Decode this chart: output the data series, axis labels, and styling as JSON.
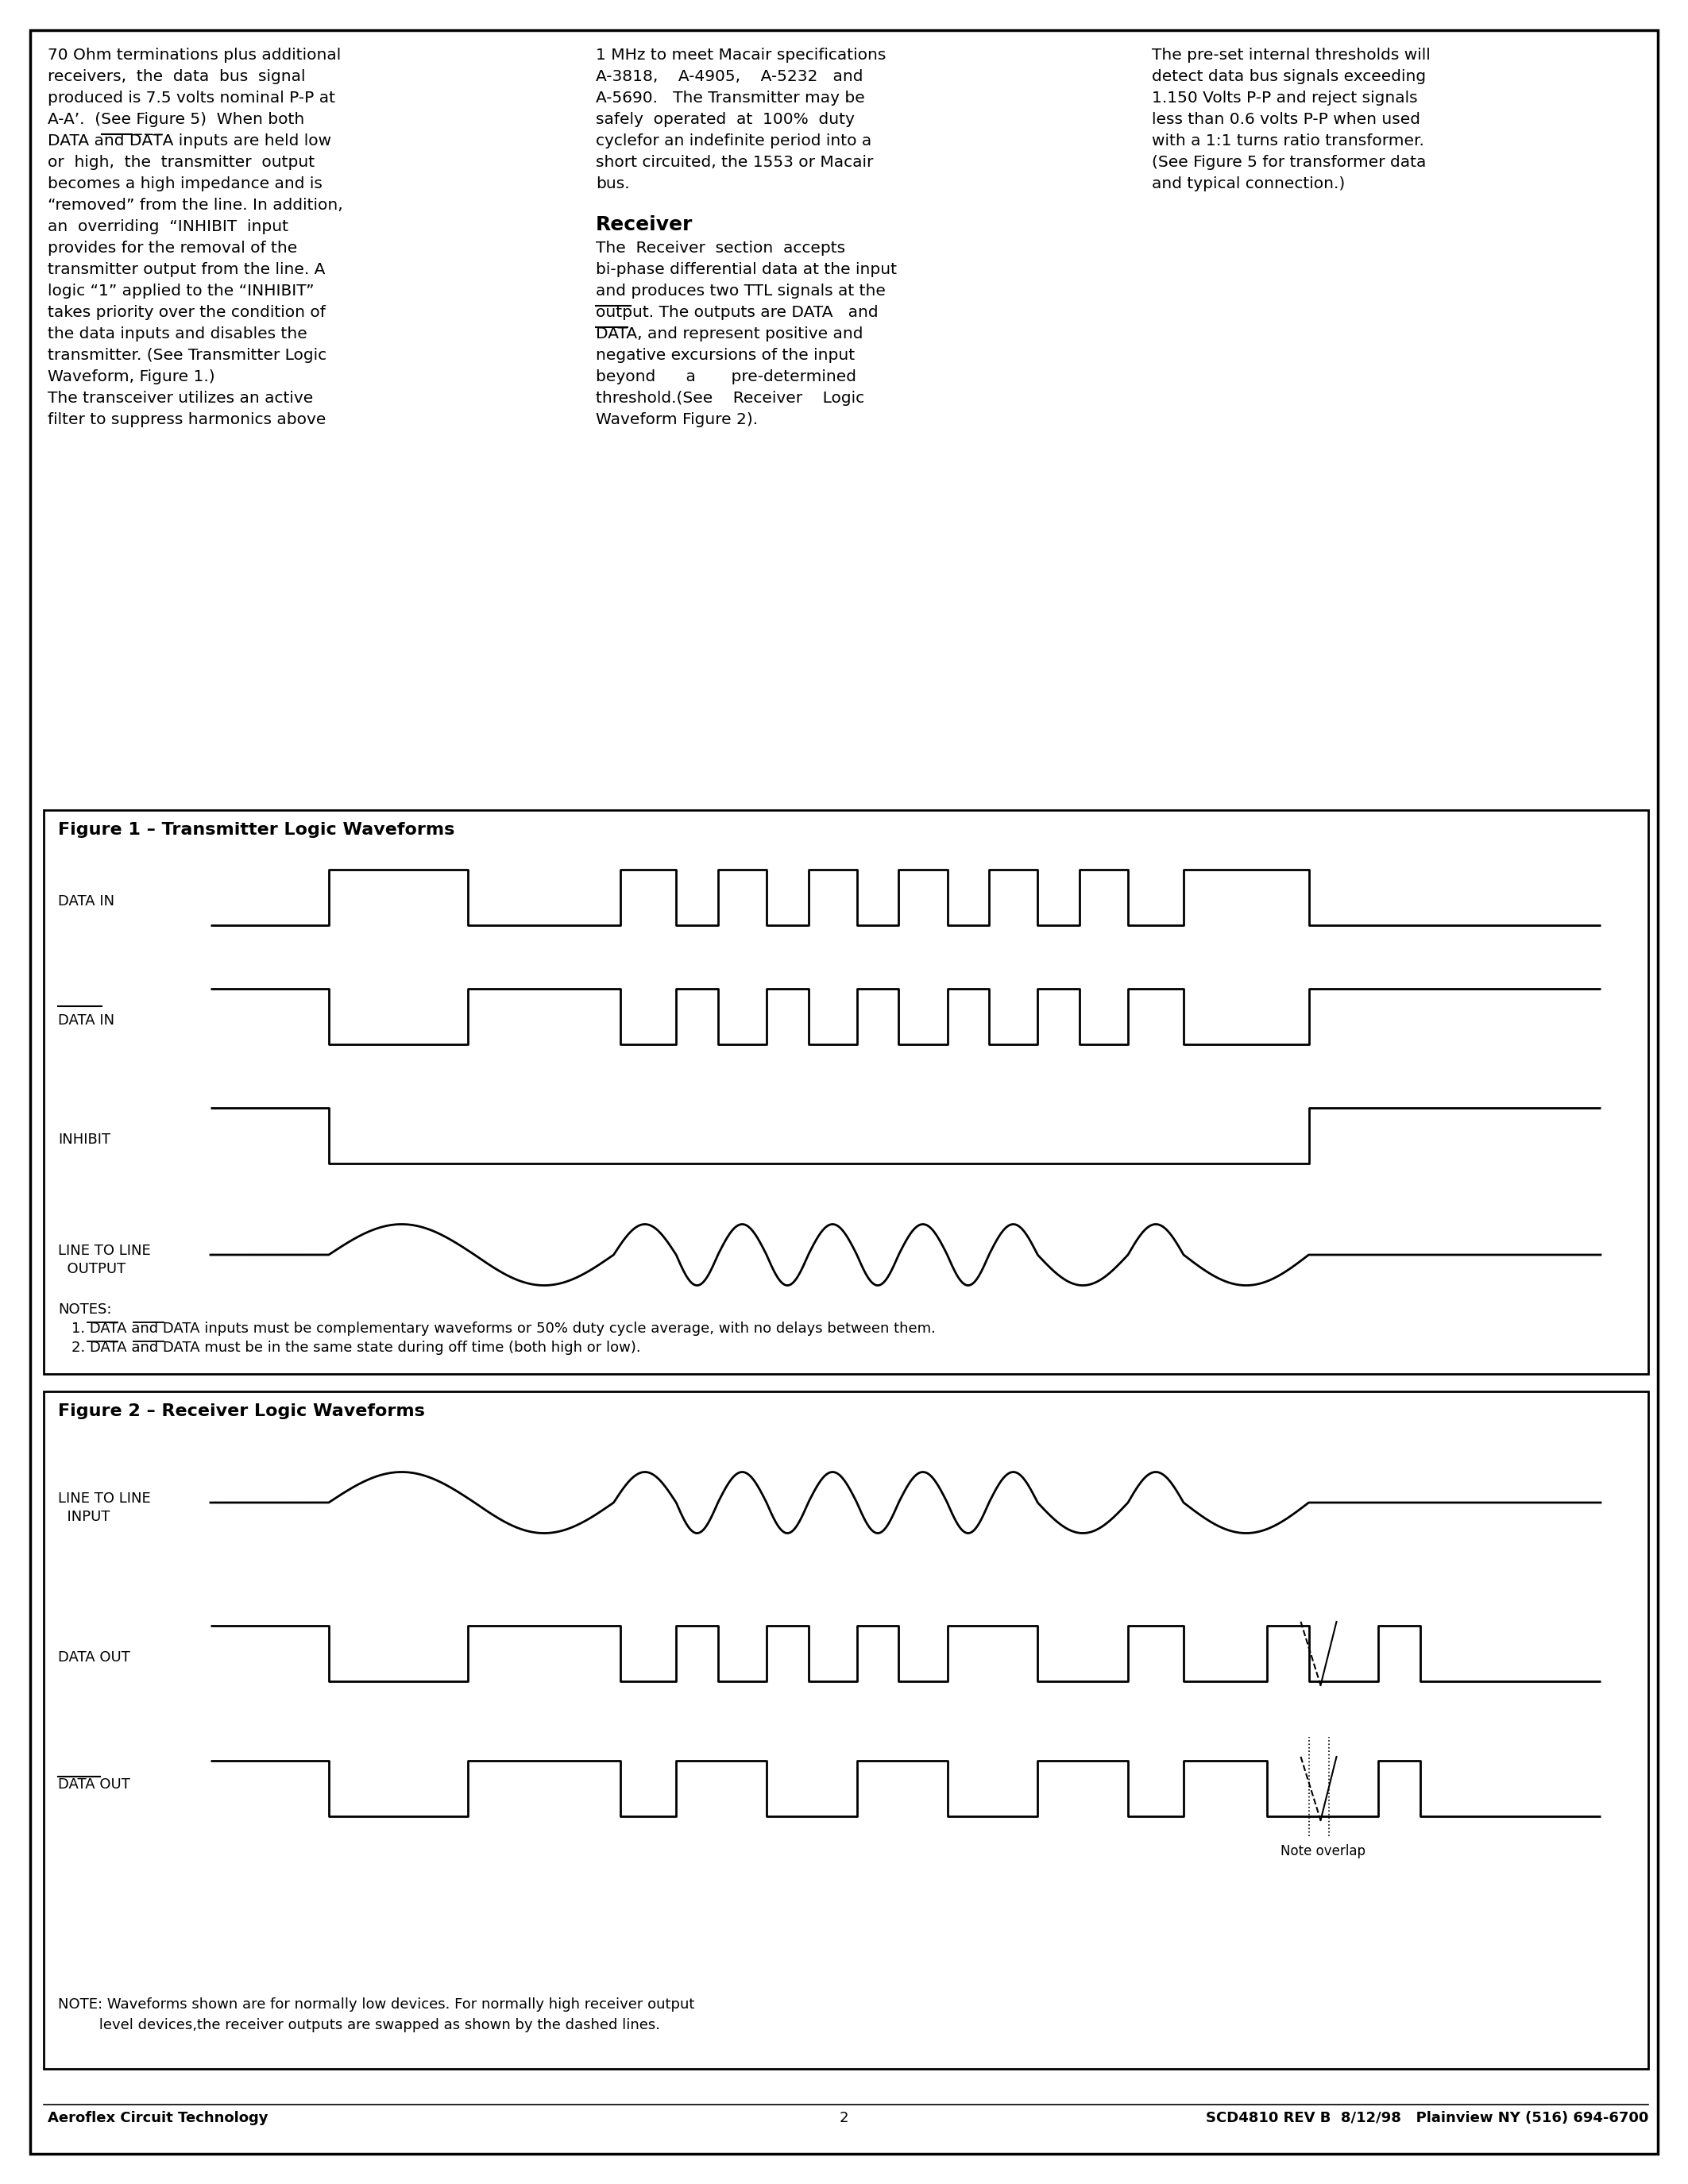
{
  "page_bg": "#ffffff",
  "fig1_title": "Figure 1 – Transmitter Logic Waveforms",
  "fig2_title": "Figure 2 – Receiver Logic Waveforms",
  "footer_left": "Aeroflex Circuit Technology",
  "footer_center": "2",
  "footer_right": "SCD4810 REV B  8/12/98   Plainview NY (516) 694-6700"
}
